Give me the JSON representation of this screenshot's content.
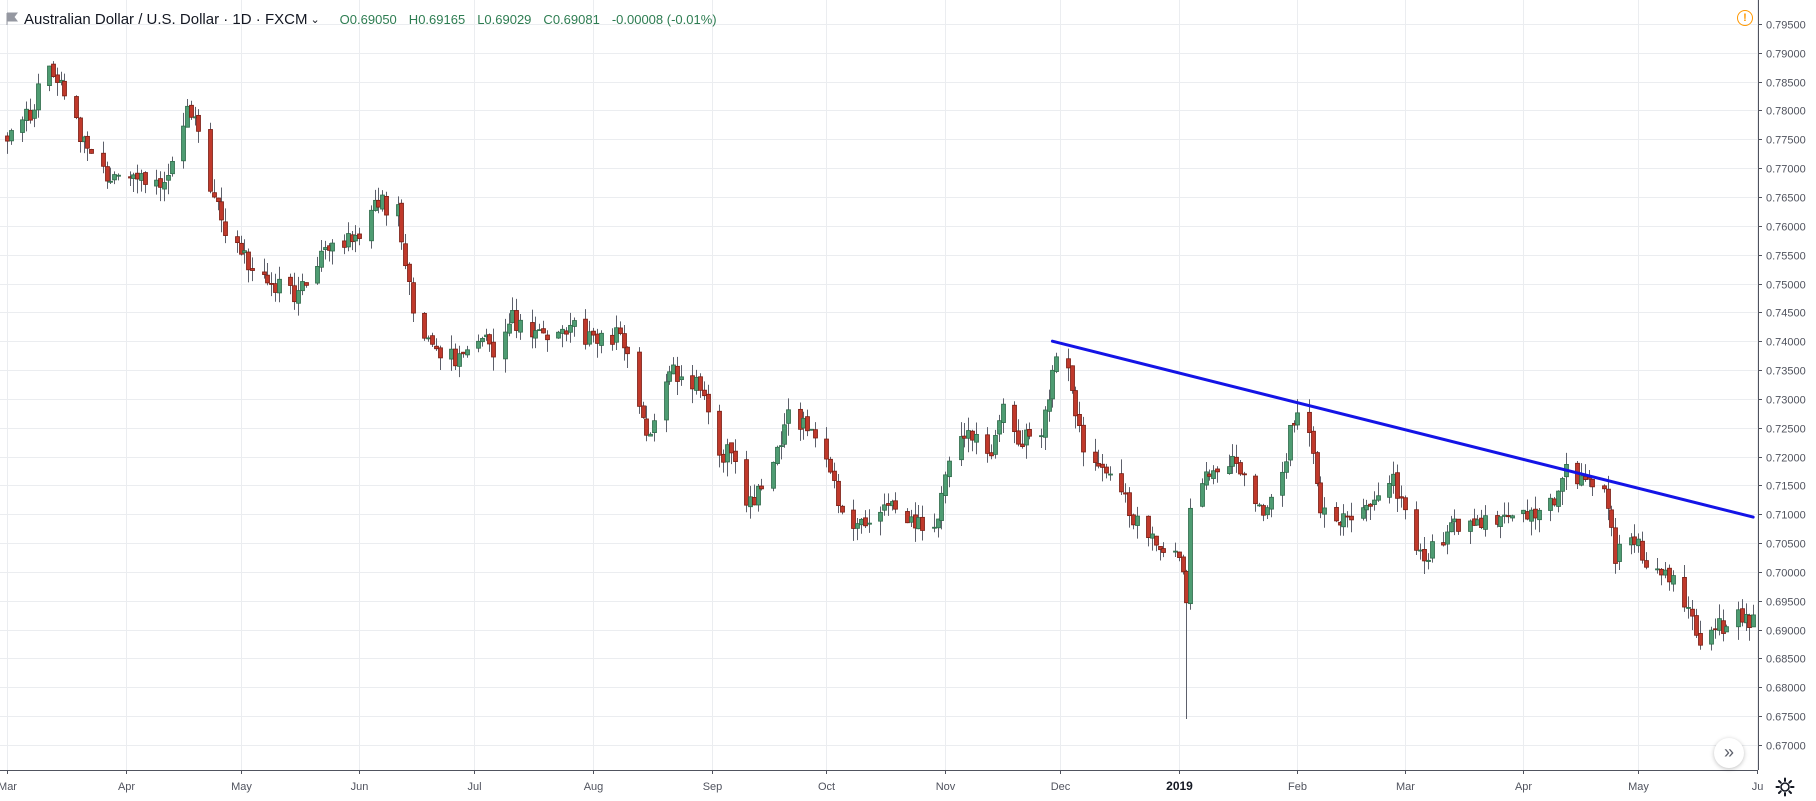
{
  "legend": {
    "symbol": "Australian Dollar / U.S. Dollar",
    "interval": "1D",
    "exchange": "FXCM",
    "sep": "·",
    "caret": "⌄",
    "open_label": "O",
    "open": "0.69050",
    "high_label": "H",
    "high": "0.69165",
    "low_label": "L",
    "low": "0.69029",
    "close_label": "C",
    "close": "0.69081",
    "change": "-0.00008 (-0.01%)"
  },
  "icons": {
    "symbol": "flag-icon",
    "warning": "warning-icon",
    "scroll": "chevrons-right-icon",
    "settings": "gear-icon"
  },
  "colors": {
    "up": "#53b987",
    "down": "#eb4d5c",
    "up_fill": "#4e9c72",
    "down_fill": "#c0392b",
    "trendline": "#1414e6",
    "grid": "#ebedf0",
    "axis_text": "#50535e"
  },
  "chart_data": {
    "type": "candlestick",
    "instrument": "AUDUSD",
    "y_ticks": [
      "0.67000",
      "0.67500",
      "0.68000",
      "0.68500",
      "0.69000",
      "0.69500",
      "0.70000",
      "0.70500",
      "0.71000",
      "0.71500",
      "0.72000",
      "0.72500",
      "0.73000",
      "0.73500",
      "0.74000",
      "0.74500",
      "0.75000",
      "0.75500",
      "0.76000",
      "0.76500",
      "0.77000",
      "0.77500",
      "0.78000",
      "0.78500",
      "0.79000",
      "0.79500"
    ],
    "x_labels": [
      "Mar",
      "Apr",
      "May",
      "Jun",
      "Jul",
      "Aug",
      "Sep",
      "Oct",
      "Nov",
      "Dec",
      "2019",
      "Feb",
      "Mar",
      "Apr",
      "May",
      "Ju"
    ],
    "x_label_dates": [
      "2018-03-01",
      "2018-04-01",
      "2018-05-01",
      "2018-06-01",
      "2018-07-01",
      "2018-08-01",
      "2018-09-01",
      "2018-10-01",
      "2018-11-01",
      "2018-12-01",
      "2019-01-01",
      "2019-02-01",
      "2019-03-01",
      "2019-04-01",
      "2019-05-01",
      "2019-06-01"
    ],
    "ylim": [
      0.666,
      0.7975
    ],
    "date_range": [
      "2018-03-01",
      "2019-06-01"
    ],
    "trendline": {
      "start": [
        "2018-11-29",
        0.74
      ],
      "end": [
        "2019-05-31",
        0.7095
      ]
    },
    "anchors": [
      [
        "2018-03-01",
        0.776
      ],
      [
        "2018-03-07",
        0.78
      ],
      [
        "2018-03-12",
        0.788
      ],
      [
        "2018-03-16",
        0.784
      ],
      [
        "2018-03-21",
        0.774
      ],
      [
        "2018-03-28",
        0.768
      ],
      [
        "2018-04-03",
        0.769
      ],
      [
        "2018-04-09",
        0.767
      ],
      [
        "2018-04-13",
        0.77
      ],
      [
        "2018-04-17",
        0.779
      ],
      [
        "2018-04-20",
        0.777
      ],
      [
        "2018-04-24",
        0.764
      ],
      [
        "2018-04-30",
        0.756
      ],
      [
        "2018-05-07",
        0.75
      ],
      [
        "2018-05-10",
        0.75
      ],
      [
        "2018-05-15",
        0.748
      ],
      [
        "2018-05-21",
        0.754
      ],
      [
        "2018-05-25",
        0.756
      ],
      [
        "2018-06-01",
        0.758
      ],
      [
        "2018-06-06",
        0.764
      ],
      [
        "2018-06-11",
        0.763
      ],
      [
        "2018-06-15",
        0.745
      ],
      [
        "2018-06-19",
        0.739
      ],
      [
        "2018-06-27",
        0.737
      ],
      [
        "2018-07-03",
        0.74
      ],
      [
        "2018-07-06",
        0.738
      ],
      [
        "2018-07-10",
        0.744
      ],
      [
        "2018-07-16",
        0.742
      ],
      [
        "2018-07-23",
        0.74
      ],
      [
        "2018-07-27",
        0.742
      ],
      [
        "2018-08-03",
        0.74
      ],
      [
        "2018-08-08",
        0.741
      ],
      [
        "2018-08-13",
        0.729
      ],
      [
        "2018-08-15",
        0.724
      ],
      [
        "2018-08-22",
        0.735
      ],
      [
        "2018-08-28",
        0.733
      ],
      [
        "2018-09-03",
        0.721
      ],
      [
        "2018-09-07",
        0.72
      ],
      [
        "2018-09-10",
        0.711
      ],
      [
        "2018-09-14",
        0.714
      ],
      [
        "2018-09-21",
        0.727
      ],
      [
        "2018-09-26",
        0.726
      ],
      [
        "2018-10-01",
        0.721
      ],
      [
        "2018-10-05",
        0.71
      ],
      [
        "2018-10-09",
        0.708
      ],
      [
        "2018-10-15",
        0.712
      ],
      [
        "2018-10-22",
        0.709
      ],
      [
        "2018-10-30",
        0.708
      ],
      [
        "2018-11-02",
        0.72
      ],
      [
        "2018-11-07",
        0.725
      ],
      [
        "2018-11-12",
        0.719
      ],
      [
        "2018-11-16",
        0.729
      ],
      [
        "2018-11-20",
        0.723
      ],
      [
        "2018-11-26",
        0.723
      ],
      [
        "2018-11-30",
        0.737
      ],
      [
        "2018-12-03",
        0.735
      ],
      [
        "2018-12-07",
        0.722
      ],
      [
        "2018-12-14",
        0.718
      ],
      [
        "2018-12-19",
        0.711
      ],
      [
        "2018-12-24",
        0.705
      ],
      [
        "2018-12-31",
        0.704
      ],
      [
        "2019-01-03",
        0.696
      ],
      [
        "2019-01-04",
        0.711
      ],
      [
        "2019-01-09",
        0.717
      ],
      [
        "2019-01-14",
        0.72
      ],
      [
        "2019-01-18",
        0.718
      ],
      [
        "2019-01-23",
        0.71
      ],
      [
        "2019-01-28",
        0.717
      ],
      [
        "2019-01-31",
        0.727
      ],
      [
        "2019-02-04",
        0.724
      ],
      [
        "2019-02-07",
        0.71
      ],
      [
        "2019-02-11",
        0.708
      ],
      [
        "2019-02-18",
        0.711
      ],
      [
        "2019-02-21",
        0.713
      ],
      [
        "2019-02-26",
        0.716
      ],
      [
        "2019-03-01",
        0.71
      ],
      [
        "2019-03-06",
        0.702
      ],
      [
        "2019-03-12",
        0.707
      ],
      [
        "2019-03-19",
        0.709
      ],
      [
        "2019-03-25",
        0.708
      ],
      [
        "2019-04-01",
        0.71
      ],
      [
        "2019-04-05",
        0.709
      ],
      [
        "2019-04-09",
        0.713
      ],
      [
        "2019-04-12",
        0.717
      ],
      [
        "2019-04-17",
        0.716
      ],
      [
        "2019-04-22",
        0.714
      ],
      [
        "2019-04-25",
        0.703
      ],
      [
        "2019-04-30",
        0.705
      ],
      [
        "2019-05-06",
        0.699
      ],
      [
        "2019-05-10",
        0.699
      ],
      [
        "2019-05-15",
        0.691
      ],
      [
        "2019-05-17",
        0.688
      ],
      [
        "2019-05-21",
        0.69
      ],
      [
        "2019-05-27",
        0.692
      ],
      [
        "2019-05-31",
        0.691
      ]
    ]
  }
}
